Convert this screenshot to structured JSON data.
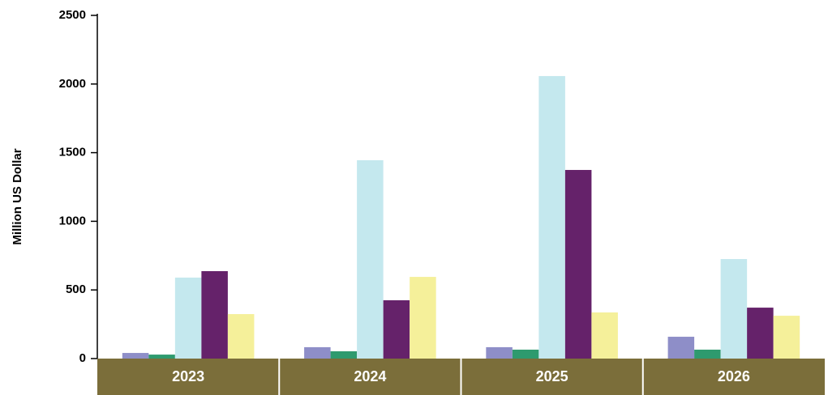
{
  "chart_data": {
    "type": "bar",
    "y_label": "Million US Dollar",
    "categories": [
      "2023",
      "2024",
      "2025",
      "2026"
    ],
    "series": [
      {
        "color": "#8e8ec8",
        "values": [
          41,
          83,
          83,
          159
        ]
      },
      {
        "color": "#2e9a6e",
        "values": [
          29,
          53,
          65,
          65
        ]
      },
      {
        "color": "#c4e8ee",
        "values": [
          590,
          1445,
          2058,
          725
        ]
      },
      {
        "color": "#65226a",
        "values": [
          637,
          425,
          1374,
          371
        ]
      },
      {
        "color": "#f5f09a",
        "values": [
          324,
          595,
          336,
          312
        ]
      }
    ],
    "ylim": [
      0,
      2500
    ],
    "yticks": [
      0,
      500,
      1000,
      1500,
      2000,
      2500
    ],
    "grid": false
  }
}
